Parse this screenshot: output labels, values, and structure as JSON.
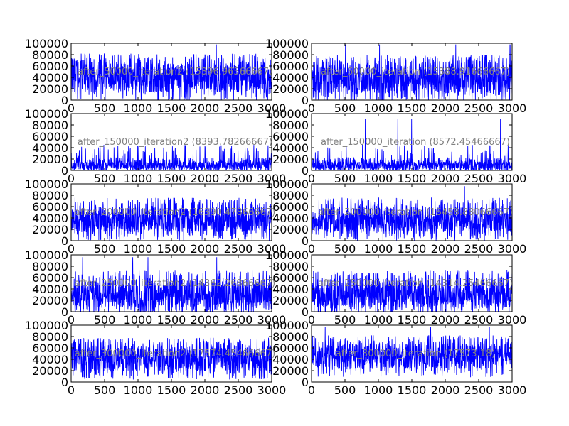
{
  "figure": {
    "background": "#ffffff",
    "line_color": "#0000ff",
    "title_color": "#808080"
  },
  "chart_data": [
    {
      "type": "line",
      "title": "after_50000_iteration2 (15396.96566667)",
      "x_ticks": [
        "0",
        "500",
        "1000",
        "1500",
        "2000",
        "2500",
        "3000"
      ],
      "y_ticks": [
        "0",
        "20000",
        "40000",
        "60000",
        "80000",
        "100000"
      ],
      "xlim": [
        0,
        3000
      ],
      "ylim": [
        0,
        100000
      ],
      "series": [
        {
          "mean": 30000,
          "spread": 34000,
          "cap": 98000,
          "spike_rate": 0.28,
          "spike_level": 82000,
          "seed": 11
        }
      ]
    },
    {
      "type": "line",
      "title": "after_50000_iteration (15388.91666667)",
      "x_ticks": [
        "0",
        "500",
        "1000",
        "1500",
        "2000",
        "2500",
        "3000"
      ],
      "y_ticks": [
        "0",
        "20000",
        "40000",
        "60000",
        "80000",
        "100000"
      ],
      "xlim": [
        0,
        3000
      ],
      "ylim": [
        0,
        100000
      ],
      "series": [
        {
          "mean": 28000,
          "spread": 32000,
          "cap": 98000,
          "spike_rate": 0.26,
          "spike_level": 80000,
          "seed": 23
        }
      ]
    },
    {
      "type": "line",
      "title": "after_150000_iteration2 (8393.78266667)",
      "x_ticks": [
        "0",
        "500",
        "1000",
        "1500",
        "2000",
        "2500",
        "3000"
      ],
      "y_ticks": [
        "0",
        "20000",
        "40000",
        "60000",
        "80000",
        "100000"
      ],
      "xlim": [
        0,
        3000
      ],
      "ylim": [
        0,
        100000
      ],
      "series": [
        {
          "mean": 9000,
          "spread": 14000,
          "cap": 92000,
          "spike_rate": 0.06,
          "spike_level": 45000,
          "seed": 37
        }
      ]
    },
    {
      "type": "line",
      "title": "after_150000_iteration (8572.45466667)",
      "x_ticks": [
        "0",
        "500",
        "1000",
        "1500",
        "2000",
        "2500",
        "3000"
      ],
      "y_ticks": [
        "0",
        "20000",
        "40000",
        "60000",
        "80000",
        "100000"
      ],
      "xlim": [
        0,
        3000
      ],
      "ylim": [
        0,
        100000
      ],
      "series": [
        {
          "mean": 9000,
          "spread": 14000,
          "cap": 90000,
          "spike_rate": 0.06,
          "spike_level": 45000,
          "seed": 41
        }
      ]
    },
    {
      "type": "line",
      "title": "after_200000_iteration2 (16390.47866667)",
      "x_ticks": [
        "0",
        "500",
        "1000",
        "1500",
        "2000",
        "2500",
        "3000"
      ],
      "y_ticks": [
        "0",
        "20000",
        "40000",
        "60000",
        "80000",
        "100000"
      ],
      "xlim": [
        0,
        3000
      ],
      "ylim": [
        0,
        100000
      ],
      "series": [
        {
          "mean": 30000,
          "spread": 30000,
          "cap": 96000,
          "spike_rate": 0.22,
          "spike_level": 76000,
          "seed": 53
        }
      ]
    },
    {
      "type": "line",
      "title": "after_200000_iteration (16458.88066667)",
      "x_ticks": [
        "0",
        "500",
        "1000",
        "1500",
        "2000",
        "2500",
        "3000"
      ],
      "y_ticks": [
        "0",
        "20000",
        "40000",
        "60000",
        "80000",
        "100000"
      ],
      "xlim": [
        0,
        3000
      ],
      "ylim": [
        0,
        100000
      ],
      "series": [
        {
          "mean": 30000,
          "spread": 30000,
          "cap": 96000,
          "spike_rate": 0.22,
          "spike_level": 76000,
          "seed": 61
        }
      ]
    },
    {
      "type": "line",
      "title": "after_250000_iteration2 (14362.26866667)",
      "x_ticks": [
        "0",
        "500",
        "1000",
        "1500",
        "2000",
        "2500",
        "3000"
      ],
      "y_ticks": [
        "0",
        "20000",
        "40000",
        "60000",
        "80000",
        "100000"
      ],
      "xlim": [
        0,
        3000
      ],
      "ylim": [
        0,
        100000
      ],
      "series": [
        {
          "mean": 24000,
          "spread": 30000,
          "cap": 96000,
          "spike_rate": 0.2,
          "spike_level": 74000,
          "seed": 71
        }
      ]
    },
    {
      "type": "line",
      "title": "after_250000_iteration (14314.25466667)",
      "x_ticks": [
        "0",
        "500",
        "1000",
        "1500",
        "2000",
        "2500",
        "3000"
      ],
      "y_ticks": [
        "0",
        "20000",
        "40000",
        "60000",
        "80000",
        "100000"
      ],
      "xlim": [
        0,
        3000
      ],
      "ylim": [
        0,
        100000
      ],
      "series": [
        {
          "mean": 24000,
          "spread": 30000,
          "cap": 94000,
          "spike_rate": 0.2,
          "spike_level": 74000,
          "seed": 83
        }
      ]
    },
    {
      "type": "line",
      "title": "after_300000_iteration2 (17574.45466667)",
      "x_ticks": [
        "0",
        "500",
        "1000",
        "1500",
        "2000",
        "2500",
        "3000"
      ],
      "y_ticks": [
        "0",
        "20000",
        "40000",
        "60000",
        "80000",
        "100000"
      ],
      "xlim": [
        0,
        3000
      ],
      "ylim": [
        0,
        100000
      ],
      "series": [
        {
          "mean": 34000,
          "spread": 30000,
          "cap": 96000,
          "spike_rate": 0.24,
          "spike_level": 78000,
          "seed": 97
        }
      ]
    },
    {
      "type": "line",
      "title": "after_300000_iteration (17573.18)",
      "x_ticks": [
        "0",
        "500",
        "1000",
        "1500",
        "2000",
        "2500",
        "3000"
      ],
      "y_ticks": [
        "0",
        "20000",
        "40000",
        "60000",
        "80000",
        "100000"
      ],
      "xlim": [
        0,
        3000
      ],
      "ylim": [
        0,
        100000
      ],
      "series": [
        {
          "mean": 38000,
          "spread": 30000,
          "cap": 97000,
          "spike_rate": 0.3,
          "spike_level": 82000,
          "seed": 103
        }
      ]
    }
  ]
}
